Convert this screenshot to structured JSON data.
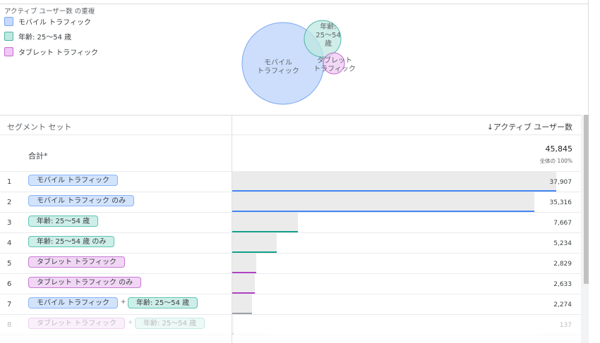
{
  "venn": {
    "title": "アクティブ ユーザー数 の重複",
    "legend": [
      {
        "label": "モバイル トラフィック",
        "fill": "#c6dafc",
        "stroke": "#7aa7f0"
      },
      {
        "label": "年齢: 25〜54 歳",
        "fill": "#bfe8e1",
        "stroke": "#4fb8a8"
      },
      {
        "label": "タブレット トラフィック",
        "fill": "#efc9f3",
        "stroke": "#c46bd0"
      }
    ],
    "circle_labels": {
      "mobile": [
        "モバイル",
        "トラフィック"
      ],
      "age": [
        "年齢:",
        "25〜54",
        "歳"
      ],
      "tablet": [
        "タブレット",
        "トラフィック"
      ]
    }
  },
  "table": {
    "header": {
      "segment_set": "セグメント セット",
      "metric": "アクティブ ユーザー数",
      "sort_icon": "arrow-down-icon"
    },
    "total": {
      "label": "合計*",
      "value": "45,845",
      "percent": "全体の 100%"
    },
    "rows": [
      {
        "num": "1",
        "chips": [
          {
            "label": "モバイル トラフィック",
            "color": "blue"
          }
        ],
        "value": "37,907",
        "fraction": 0.827,
        "line": "#4285f4"
      },
      {
        "num": "2",
        "chips": [
          {
            "label": "モバイル トラフィック のみ",
            "color": "blue"
          }
        ],
        "value": "35,316",
        "fraction": 0.77,
        "line": "#4285f4"
      },
      {
        "num": "3",
        "chips": [
          {
            "label": "年齢: 25〜54 歳",
            "color": "teal"
          }
        ],
        "value": "7,667",
        "fraction": 0.167,
        "line": "#12a08a"
      },
      {
        "num": "4",
        "chips": [
          {
            "label": "年齢: 25〜54 歳 のみ",
            "color": "teal"
          }
        ],
        "value": "5,234",
        "fraction": 0.114,
        "line": "#12a08a"
      },
      {
        "num": "5",
        "chips": [
          {
            "label": "タブレット トラフィック",
            "color": "purple"
          }
        ],
        "value": "2,829",
        "fraction": 0.062,
        "line": "#b13fc0"
      },
      {
        "num": "6",
        "chips": [
          {
            "label": "タブレット トラフィック のみ",
            "color": "purple"
          }
        ],
        "value": "2,633",
        "fraction": 0.057,
        "line": "#b13fc0"
      },
      {
        "num": "7",
        "chips": [
          {
            "label": "モバイル トラフィック",
            "color": "blue"
          },
          {
            "label": "年齢: 25〜54 歳",
            "color": "teal"
          }
        ],
        "value": "2,274",
        "fraction": 0.05,
        "line": "#9aa0a6"
      },
      {
        "num": "8",
        "chips": [
          {
            "label": "タブレット トラフィック",
            "color": "purple"
          },
          {
            "label": "年齢: 25〜54 歳",
            "color": "teal"
          }
        ],
        "value": "137",
        "fraction": 0.003,
        "line": "#9aa0a6"
      }
    ],
    "plus": "+"
  }
}
